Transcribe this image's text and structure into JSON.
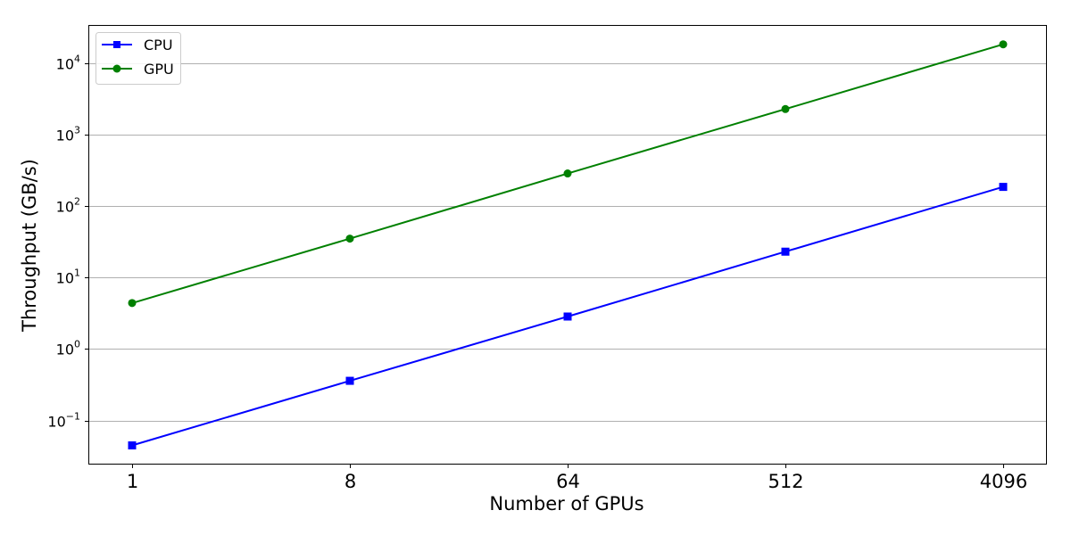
{
  "chart_data": {
    "type": "line",
    "xlabel": "Number of GPUs",
    "ylabel": "Throughput (GB/s)",
    "x_scale": "log2",
    "y_scale": "log10",
    "categories": [
      "1",
      "8",
      "64",
      "512",
      "4096"
    ],
    "x": [
      1,
      8,
      64,
      512,
      4096
    ],
    "y_ticks": [
      {
        "base": "10",
        "exp": "−1",
        "value": 0.1
      },
      {
        "base": "10",
        "exp": "0",
        "value": 1
      },
      {
        "base": "10",
        "exp": "1",
        "value": 10
      },
      {
        "base": "10",
        "exp": "2",
        "value": 100
      },
      {
        "base": "10",
        "exp": "3",
        "value": 1000
      },
      {
        "base": "10",
        "exp": "4",
        "value": 10000
      }
    ],
    "ylim": [
      0.025,
      33000
    ],
    "grid": {
      "y": true,
      "x": false
    },
    "legend_position": "top-left",
    "series": [
      {
        "name": "CPU",
        "color": "#0000ff",
        "marker": "square",
        "values": [
          0.045,
          0.36,
          2.85,
          23,
          185
        ]
      },
      {
        "name": "GPU",
        "color": "#008000",
        "marker": "circle",
        "values": [
          4.4,
          35,
          285,
          2270,
          18200
        ]
      }
    ]
  }
}
